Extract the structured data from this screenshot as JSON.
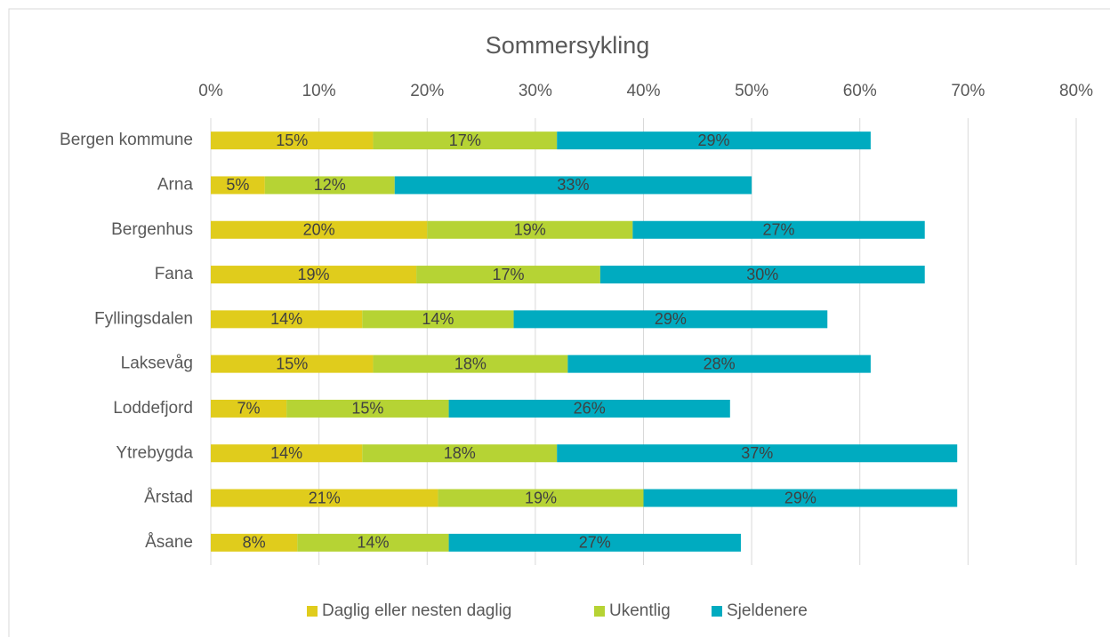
{
  "chart_data": {
    "type": "stacked-bar-horizontal",
    "title": "Sommersykling",
    "categories": [
      "Bergen kommune",
      "Arna",
      "Bergenhus",
      "Fana",
      "Fyllingsdalen",
      "Laksevåg",
      "Loddefjord",
      "Ytrebygda",
      "Årstad",
      "Åsane"
    ],
    "series": [
      {
        "name": "Daglig eller nesten daglig",
        "color": "#e0cc1c",
        "values": [
          15,
          5,
          20,
          19,
          14,
          15,
          7,
          14,
          21,
          8
        ],
        "value_labels": [
          "15%",
          "5%",
          "20%",
          "19%",
          "14%",
          "15%",
          "7%",
          "14%",
          "21%",
          "8%"
        ]
      },
      {
        "name": "Ukentlig",
        "color": "#b6d334",
        "values": [
          17,
          12,
          19,
          17,
          14,
          18,
          15,
          18,
          19,
          14
        ],
        "value_labels": [
          "17%",
          "12%",
          "19%",
          "17%",
          "14%",
          "18%",
          "15%",
          "18%",
          "19%",
          "14%"
        ]
      },
      {
        "name": "Sjeldenere",
        "color": "#00abc0",
        "values": [
          29,
          33,
          27,
          30,
          29,
          28,
          26,
          37,
          29,
          27
        ],
        "value_labels": [
          "29%",
          "33%",
          "27%",
          "30%",
          "29%",
          "28%",
          "26%",
          "37%",
          "29%",
          "27%"
        ]
      }
    ],
    "xlim": [
      0,
      80
    ],
    "xticks": [
      {
        "value": 0,
        "label": "0%"
      },
      {
        "value": 10,
        "label": "10%"
      },
      {
        "value": 20,
        "label": "20%"
      },
      {
        "value": 30,
        "label": "30%"
      },
      {
        "value": 40,
        "label": "40%"
      },
      {
        "value": 50,
        "label": "50%"
      },
      {
        "value": 60,
        "label": "60%"
      },
      {
        "value": 70,
        "label": "70%"
      },
      {
        "value": 80,
        "label": "80%"
      }
    ],
    "grid": true,
    "legend": "bottom"
  }
}
